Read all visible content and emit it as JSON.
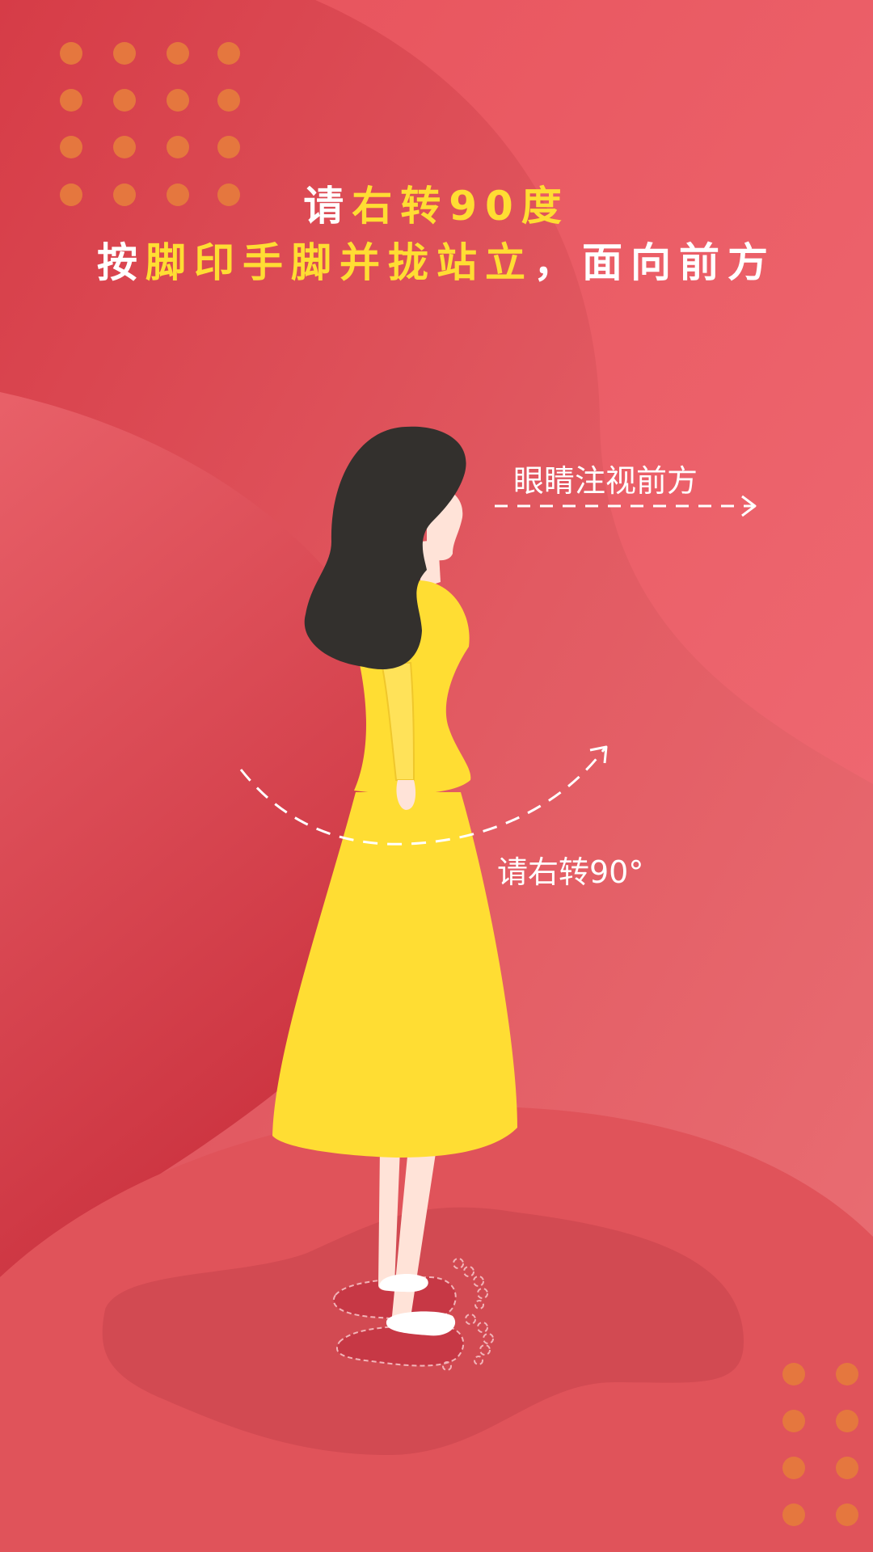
{
  "instruction": {
    "line1": [
      {
        "text": "请",
        "color": "white"
      },
      {
        "text": "右转90度",
        "color": "yellow"
      }
    ],
    "line2": [
      {
        "text": "按",
        "color": "white"
      },
      {
        "text": "脚印手脚并拢站立",
        "color": "yellow"
      },
      {
        "text": "，面向前方",
        "color": "white"
      }
    ]
  },
  "annotations": {
    "eyes_label": "眼睛注视前方",
    "turn_label": "请右转90°"
  },
  "icons": {
    "figure": "woman-in-yellow-dress-illustration",
    "arrow_forward": "dashed-arrow-right-icon",
    "arrow_turn": "dashed-curved-arrow-icon",
    "footprints": "footprints-icon"
  },
  "colors": {
    "background": "#e2555c",
    "accent_yellow": "#ffdd33",
    "hair": "#33302d",
    "skin": "#ffe3d8",
    "dots": "#e5773e"
  }
}
